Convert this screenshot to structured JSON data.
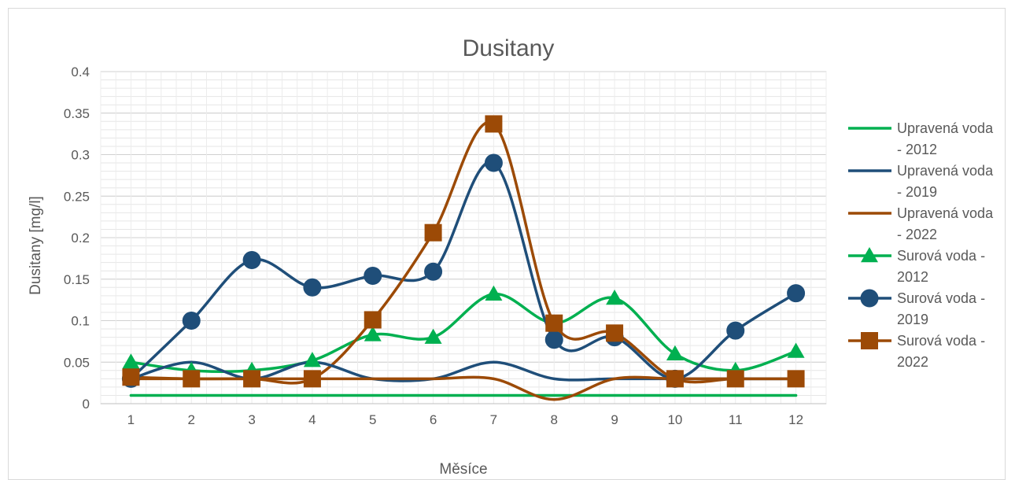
{
  "chart_data": {
    "type": "line",
    "title": "Dusitany",
    "xlabel": "Měsíce",
    "ylabel": "Dusitany [mg/l]",
    "x": [
      1,
      2,
      3,
      4,
      5,
      6,
      7,
      8,
      9,
      10,
      11,
      12
    ],
    "ylim": [
      0,
      0.4
    ],
    "yticks": [
      "0",
      "0.05",
      "0.1",
      "0.15",
      "0.2",
      "0.25",
      "0.3",
      "0.35",
      "0.4"
    ],
    "grid": true,
    "smooth": true,
    "legend_position": "right",
    "series": [
      {
        "name": "Upravená voda - 2012",
        "legend_lines": [
          "Upravená voda",
          "- 2012"
        ],
        "color": "#00b050",
        "marker": "none",
        "values": [
          0.01,
          0.01,
          0.01,
          0.01,
          0.01,
          0.01,
          0.01,
          0.01,
          0.01,
          0.01,
          0.01,
          0.01
        ]
      },
      {
        "name": "Upravená voda - 2019",
        "legend_lines": [
          "Upravená voda",
          "- 2019"
        ],
        "color": "#1f4e79",
        "marker": "none",
        "values": [
          0.03,
          0.05,
          0.03,
          0.05,
          0.03,
          0.03,
          0.05,
          0.03,
          0.03,
          0.03,
          0.03,
          0.03
        ]
      },
      {
        "name": "Upravená voda - 2022",
        "legend_lines": [
          "Upravená voda",
          "- 2022"
        ],
        "color": "#9c4a06",
        "marker": "none",
        "values": [
          0.03,
          0.03,
          0.03,
          0.03,
          0.03,
          0.03,
          0.03,
          0.005,
          0.03,
          0.03,
          0.03,
          0.03
        ]
      },
      {
        "name": "Surová voda - 2012",
        "legend_lines": [
          "Surová voda -",
          "2012"
        ],
        "color": "#00b050",
        "marker": "triangle",
        "values": [
          0.05,
          0.04,
          0.04,
          0.052,
          0.083,
          0.08,
          0.132,
          0.097,
          0.127,
          0.06,
          0.04,
          0.063
        ]
      },
      {
        "name": "Surová voda - 2019",
        "legend_lines": [
          "Surová voda -",
          "2019"
        ],
        "color": "#1f4e79",
        "marker": "circle",
        "values": [
          0.03,
          0.1,
          0.173,
          0.14,
          0.154,
          0.159,
          0.29,
          0.077,
          0.08,
          0.03,
          0.088,
          0.133
        ]
      },
      {
        "name": "Surová voda - 2022",
        "legend_lines": [
          "Surová voda -",
          "2022"
        ],
        "color": "#9c4a06",
        "marker": "square",
        "values": [
          0.032,
          0.03,
          0.03,
          0.03,
          0.101,
          0.206,
          0.337,
          0.097,
          0.085,
          0.03,
          0.03,
          0.03
        ]
      }
    ]
  }
}
